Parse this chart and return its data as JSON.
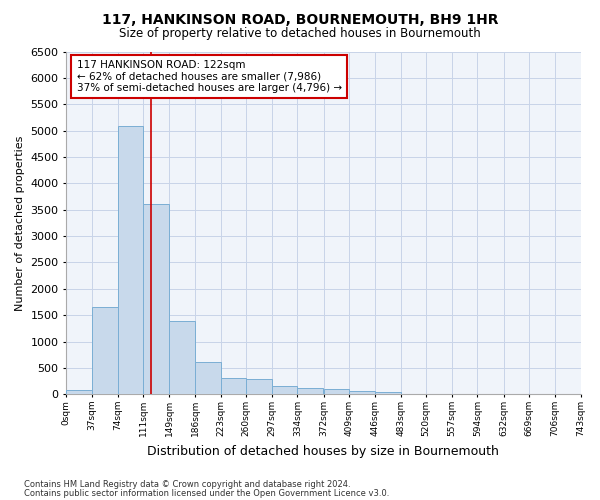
{
  "title": "117, HANKINSON ROAD, BOURNEMOUTH, BH9 1HR",
  "subtitle": "Size of property relative to detached houses in Bournemouth",
  "xlabel": "Distribution of detached houses by size in Bournemouth",
  "ylabel": "Number of detached properties",
  "footnote1": "Contains HM Land Registry data © Crown copyright and database right 2024.",
  "footnote2": "Contains public sector information licensed under the Open Government Licence v3.0.",
  "bar_color": "#c8d9eb",
  "bar_edge_color": "#7aaed4",
  "grid_color": "#c8d4e8",
  "vline_color": "#cc0000",
  "vline_x": 122,
  "bin_edges": [
    0,
    37,
    74,
    111,
    149,
    186,
    223,
    260,
    297,
    334,
    372,
    409,
    446,
    483,
    520,
    557,
    594,
    632,
    669,
    706,
    743
  ],
  "bin_labels": [
    "0sqm",
    "37sqm",
    "74sqm",
    "111sqm",
    "149sqm",
    "186sqm",
    "223sqm",
    "260sqm",
    "297sqm",
    "334sqm",
    "372sqm",
    "409sqm",
    "446sqm",
    "483sqm",
    "520sqm",
    "557sqm",
    "594sqm",
    "632sqm",
    "669sqm",
    "706sqm",
    "743sqm"
  ],
  "bar_heights": [
    80,
    1650,
    5080,
    3600,
    1390,
    610,
    300,
    290,
    150,
    120,
    90,
    65,
    40,
    0,
    0,
    0,
    0,
    0,
    0,
    0
  ],
  "ylim": [
    0,
    6500
  ],
  "yticks": [
    0,
    500,
    1000,
    1500,
    2000,
    2500,
    3000,
    3500,
    4000,
    4500,
    5000,
    5500,
    6000,
    6500
  ],
  "annotation_text": "117 HANKINSON ROAD: 122sqm\n← 62% of detached houses are smaller (7,986)\n37% of semi-detached houses are larger (4,796) →",
  "annotation_box_facecolor": "#ffffff",
  "annotation_box_edgecolor": "#cc0000",
  "background_color": "#ffffff",
  "plot_bg_color": "#f0f4fa"
}
